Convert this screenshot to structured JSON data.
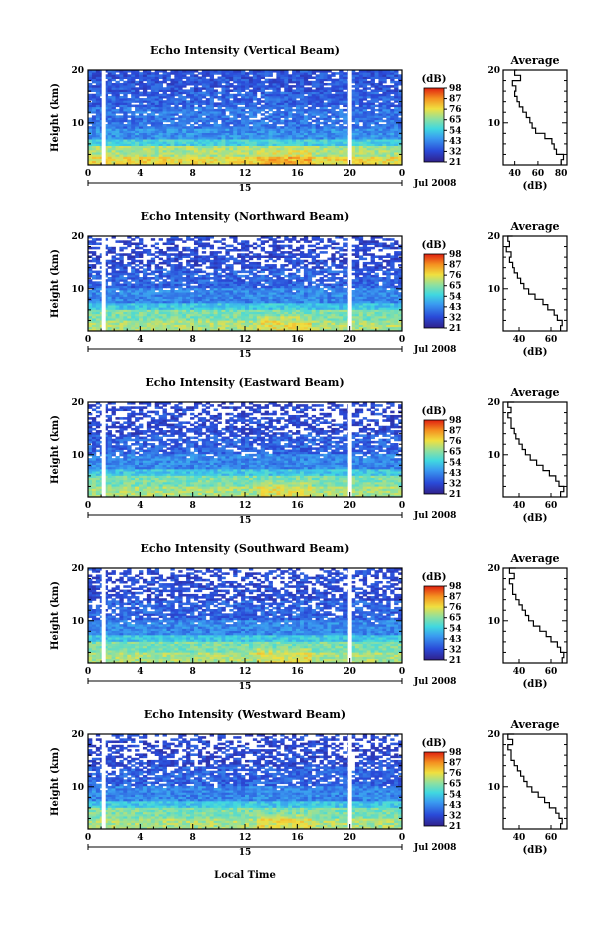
{
  "figure": {
    "xlabel_bottom": "Local Time"
  },
  "chart_data": [
    {
      "type": "heatmap",
      "title": "Echo Intensity (Vertical Beam)",
      "ylabel": "Height (km)",
      "yticks": [
        10,
        20
      ],
      "ylim": [
        2,
        20
      ],
      "xticks": [
        "0",
        "4",
        "8",
        "12",
        "16",
        "20",
        "0"
      ],
      "xlim": [
        0,
        24
      ],
      "date_day": "15",
      "date_label": "Jul 2008",
      "data_gaps_hours": [
        1.2,
        20.0
      ],
      "colorbar": {
        "title": "(dB)",
        "ticks": [
          "98",
          "87",
          "76",
          "65",
          "54",
          "43",
          "32",
          "21"
        ]
      },
      "bands": [
        {
          "from": 2,
          "to": 3.5,
          "level": 0.72
        },
        {
          "from": 3.5,
          "to": 5.5,
          "level": 0.62
        },
        {
          "from": 5.5,
          "to": 7,
          "level": 0.45
        },
        {
          "from": 7,
          "to": 9,
          "level": 0.3
        },
        {
          "from": 9,
          "to": 13,
          "level": 0.24
        },
        {
          "from": 13,
          "to": 16,
          "level": 0.2
        },
        {
          "from": 16,
          "to": 20,
          "level": 0.17
        }
      ],
      "average_profile": {
        "title": "Average",
        "xlabel": "(dB)",
        "xticks": [
          40,
          60,
          80
        ],
        "xlim": [
          30,
          85
        ],
        "yticks": [
          10,
          20
        ],
        "height_km": [
          20,
          19,
          18,
          17,
          16,
          15,
          14,
          13,
          12,
          11,
          10,
          9,
          8,
          7,
          6,
          5,
          4,
          3,
          2
        ],
        "value_db": [
          42,
          40,
          45,
          38,
          41,
          40,
          42,
          44,
          47,
          50,
          53,
          55,
          58,
          66,
          72,
          74,
          76,
          82,
          80
        ]
      }
    },
    {
      "type": "heatmap",
      "title": "Echo Intensity (Northward Beam)",
      "ylabel": "Height (km)",
      "yticks": [
        10,
        20
      ],
      "ylim": [
        2,
        20
      ],
      "xticks": [
        "0",
        "4",
        "8",
        "12",
        "16",
        "20",
        "0"
      ],
      "xlim": [
        0,
        24
      ],
      "date_day": "15",
      "date_label": "Jul 2008",
      "data_gaps_hours": [
        1.2,
        20.0
      ],
      "colorbar": {
        "title": "(dB)",
        "ticks": [
          "98",
          "87",
          "76",
          "65",
          "54",
          "43",
          "32",
          "21"
        ]
      },
      "bands": [
        {
          "from": 2,
          "to": 4,
          "level": 0.62
        },
        {
          "from": 4,
          "to": 6,
          "level": 0.55
        },
        {
          "from": 6,
          "to": 7.5,
          "level": 0.42
        },
        {
          "from": 7.5,
          "to": 10,
          "level": 0.28
        },
        {
          "from": 10,
          "to": 14,
          "level": 0.2
        },
        {
          "from": 14,
          "to": 20,
          "level": 0.14
        }
      ],
      "average_profile": {
        "title": "Average",
        "xlabel": "(dB)",
        "xticks": [
          40,
          60
        ],
        "xlim": [
          30,
          70
        ],
        "yticks": [
          10,
          20
        ],
        "height_km": [
          20,
          19,
          18,
          17,
          16,
          15,
          14,
          13,
          12,
          11,
          10,
          9,
          8,
          7,
          6,
          5,
          4,
          3,
          2
        ],
        "value_db": [
          36,
          33,
          34,
          32,
          35,
          34,
          36,
          37,
          39,
          41,
          43,
          46,
          50,
          55,
          58,
          62,
          64,
          67,
          66
        ]
      }
    },
    {
      "type": "heatmap",
      "title": "Echo Intensity (Eastward Beam)",
      "ylabel": "Height (km)",
      "yticks": [
        10,
        20
      ],
      "ylim": [
        2,
        20
      ],
      "xticks": [
        "0",
        "4",
        "8",
        "12",
        "16",
        "20",
        "0"
      ],
      "xlim": [
        0,
        24
      ],
      "date_day": "15",
      "date_label": "Jul 2008",
      "data_gaps_hours": [
        1.2,
        20.0
      ],
      "colorbar": {
        "title": "(dB)",
        "ticks": [
          "98",
          "87",
          "76",
          "65",
          "54",
          "43",
          "32",
          "21"
        ]
      },
      "bands": [
        {
          "from": 2,
          "to": 4,
          "level": 0.62
        },
        {
          "from": 4,
          "to": 6,
          "level": 0.55
        },
        {
          "from": 6,
          "to": 7.5,
          "level": 0.42
        },
        {
          "from": 7.5,
          "to": 10,
          "level": 0.28
        },
        {
          "from": 10,
          "to": 14,
          "level": 0.2
        },
        {
          "from": 14,
          "to": 20,
          "level": 0.14
        }
      ],
      "average_profile": {
        "title": "Average",
        "xlabel": "(dB)",
        "xticks": [
          40,
          60
        ],
        "xlim": [
          30,
          70
        ],
        "yticks": [
          10,
          20
        ],
        "height_km": [
          20,
          19,
          18,
          17,
          16,
          15,
          14,
          13,
          12,
          11,
          10,
          9,
          8,
          7,
          6,
          5,
          4,
          3,
          2
        ],
        "value_db": [
          37,
          33,
          35,
          33,
          35,
          35,
          37,
          38,
          40,
          42,
          44,
          47,
          51,
          55,
          59,
          63,
          65,
          68,
          66
        ]
      }
    },
    {
      "type": "heatmap",
      "title": "Echo Intensity (Southward Beam)",
      "ylabel": "Height (km)",
      "yticks": [
        10,
        20
      ],
      "ylim": [
        2,
        20
      ],
      "xticks": [
        "0",
        "4",
        "8",
        "12",
        "16",
        "20",
        "0"
      ],
      "xlim": [
        0,
        24
      ],
      "date_day": "15",
      "date_label": "Jul 2008",
      "data_gaps_hours": [
        1.2,
        20.0
      ],
      "colorbar": {
        "title": "(dB)",
        "ticks": [
          "98",
          "87",
          "76",
          "65",
          "54",
          "43",
          "32",
          "21"
        ]
      },
      "bands": [
        {
          "from": 2,
          "to": 4,
          "level": 0.62
        },
        {
          "from": 4,
          "to": 6,
          "level": 0.55
        },
        {
          "from": 6,
          "to": 7.5,
          "level": 0.42
        },
        {
          "from": 7.5,
          "to": 10,
          "level": 0.28
        },
        {
          "from": 10,
          "to": 14,
          "level": 0.2
        },
        {
          "from": 14,
          "to": 20,
          "level": 0.15
        }
      ],
      "average_profile": {
        "title": "Average",
        "xlabel": "(dB)",
        "xticks": [
          40,
          60
        ],
        "xlim": [
          30,
          70
        ],
        "yticks": [
          10,
          20
        ],
        "height_km": [
          20,
          19,
          18,
          17,
          16,
          15,
          14,
          13,
          12,
          11,
          10,
          9,
          8,
          7,
          6,
          5,
          4,
          3,
          2
        ],
        "value_db": [
          38,
          34,
          37,
          34,
          36,
          36,
          38,
          40,
          42,
          44,
          46,
          49,
          53,
          57,
          60,
          64,
          66,
          68,
          67
        ]
      }
    },
    {
      "type": "heatmap",
      "title": "Echo Intensity (Westward Beam)",
      "ylabel": "Height (km)",
      "yticks": [
        10,
        20
      ],
      "ylim": [
        2,
        20
      ],
      "xticks": [
        "0",
        "4",
        "8",
        "12",
        "16",
        "20",
        "0"
      ],
      "xlim": [
        0,
        24
      ],
      "date_day": "15",
      "date_label": "Jul 2008",
      "data_gaps_hours": [
        1.2,
        20.0
      ],
      "colorbar": {
        "title": "(dB)",
        "ticks": [
          "98",
          "87",
          "76",
          "65",
          "54",
          "43",
          "32",
          "21"
        ]
      },
      "bands": [
        {
          "from": 2,
          "to": 4,
          "level": 0.62
        },
        {
          "from": 4,
          "to": 6,
          "level": 0.55
        },
        {
          "from": 6,
          "to": 7.5,
          "level": 0.42
        },
        {
          "from": 7.5,
          "to": 10,
          "level": 0.28
        },
        {
          "from": 10,
          "to": 14,
          "level": 0.2
        },
        {
          "from": 14,
          "to": 20,
          "level": 0.14
        }
      ],
      "average_profile": {
        "title": "Average",
        "xlabel": "(dB)",
        "xticks": [
          40,
          60
        ],
        "xlim": [
          30,
          70
        ],
        "yticks": [
          10,
          20
        ],
        "height_km": [
          20,
          19,
          18,
          17,
          16,
          15,
          14,
          13,
          12,
          11,
          10,
          9,
          8,
          7,
          6,
          5,
          4,
          3,
          2
        ],
        "value_db": [
          37,
          33,
          36,
          33,
          35,
          35,
          37,
          39,
          41,
          43,
          45,
          48,
          52,
          56,
          59,
          63,
          65,
          67,
          66
        ]
      }
    }
  ]
}
